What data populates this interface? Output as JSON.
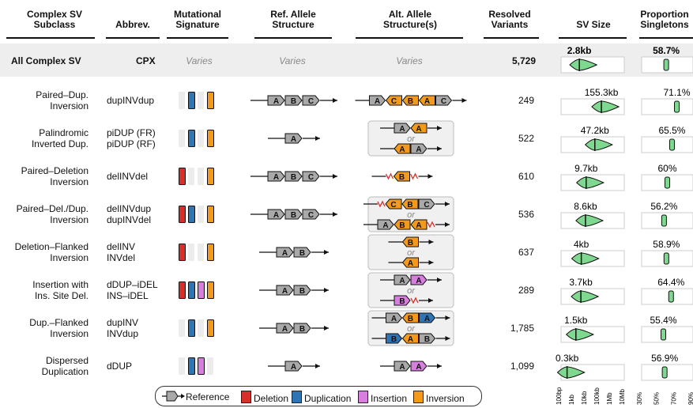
{
  "headers": {
    "subclass": "Complex SV\nSubclass",
    "abbrev": "Abbrev.",
    "signature": "Mutational\nSignature",
    "ref": "Ref. Allele\nStructure",
    "alt": "Alt. Allele\nStructure(s)",
    "resolved": "Resolved\nVariants",
    "size": "SV Size",
    "prop": "Proportion\nSingletons"
  },
  "all_row": {
    "name": "All Complex SV",
    "abbrev": "CPX",
    "varies": "Varies",
    "count": "5,729",
    "size_label": "2.8kb",
    "prop_label": "58.7%"
  },
  "or_word": "or",
  "colors": {
    "deletion": "#d7302b",
    "duplication": "#2f74b5",
    "insertion": "#d77ede",
    "inversion": "#f39a1e",
    "reference": "#a9a9a9",
    "violin": "#7fd88f",
    "row_bg": "#eeeeee",
    "empty_sig": "#ececec"
  },
  "legend": {
    "reference": "Reference",
    "deletion": "Deletion",
    "duplication": "Duplication",
    "insertion": "Insertion",
    "inversion": "Inversion"
  },
  "rows": [
    {
      "name": "Paired–Dup.\nInversion",
      "abbrev": "dupINVdup",
      "count": "249",
      "size_label": "155.3kb",
      "prop_label": "71.1%",
      "sig": [
        "",
        "dup",
        "",
        "inv"
      ],
      "ref": [
        "A",
        "B",
        "C"
      ],
      "alt": [
        "A",
        "C",
        "B",
        "A",
        "C"
      ]
    },
    {
      "name": "Palindromic\nInverted Dup.",
      "abbrev": "piDUP (FR)\npiDUP (RF)",
      "count": "522",
      "size_label": "47.2kb",
      "prop_label": "65.5%",
      "sig": [
        "",
        "dup",
        "",
        "inv"
      ],
      "ref": [
        "A"
      ],
      "alt": [
        "A",
        "A"
      ]
    },
    {
      "name": "Paired–Deletion\nInversion",
      "abbrev": "delINVdel",
      "count": "610",
      "size_label": "9.7kb",
      "prop_label": "60%",
      "sig": [
        "del",
        "",
        "",
        "inv"
      ],
      "ref": [
        "A",
        "B",
        "C"
      ],
      "alt": [
        "B"
      ]
    },
    {
      "name": "Paired–Del./Dup.\nInversion",
      "abbrev": "delINVdup\ndupINVdel",
      "count": "536",
      "size_label": "8.6kb",
      "prop_label": "56.2%",
      "sig": [
        "del",
        "dup",
        "",
        "inv"
      ],
      "ref": [
        "A",
        "B",
        "C"
      ],
      "alt": [
        "A",
        "B",
        "C"
      ]
    },
    {
      "name": "Deletion–Flanked\nInversion",
      "abbrev": "delINV\nINVdel",
      "count": "637",
      "size_label": "4kb",
      "prop_label": "58.9%",
      "sig": [
        "del",
        "",
        "",
        "inv"
      ],
      "ref": [
        "A",
        "B"
      ],
      "alt": [
        "B",
        "A"
      ]
    },
    {
      "name": "Insertion with\nIns. Site Del.",
      "abbrev": "dDUP–iDEL\nINS–iDEL",
      "count": "289",
      "size_label": "3.7kb",
      "prop_label": "64.4%",
      "sig": [
        "del",
        "dup",
        "ins",
        "inv"
      ],
      "ref": [
        "A",
        "B"
      ],
      "alt": [
        "A",
        "A",
        "B"
      ]
    },
    {
      "name": "Dup.–Flanked\nInversion",
      "abbrev": "dupINV\nINVdup",
      "count": "1,785",
      "size_label": "1.5kb",
      "prop_label": "55.4%",
      "sig": [
        "",
        "dup",
        "",
        "inv"
      ],
      "ref": [
        "A",
        "B"
      ],
      "alt": [
        "A",
        "B",
        "A",
        "B"
      ]
    },
    {
      "name": "Dispersed\nDuplication",
      "abbrev": "dDUP",
      "count": "1,099",
      "size_label": "0.3kb",
      "prop_label": "56.9%",
      "sig": [
        "",
        "dup",
        "ins",
        ""
      ],
      "ref": [
        "A"
      ],
      "alt": [
        "A",
        "A"
      ]
    }
  ],
  "chart_data": [
    {
      "type": "violin",
      "title": "SV Size",
      "scale": "log10",
      "tick_labels": [
        "100bp",
        "1kb",
        "10kb",
        "100kb",
        "1Mb",
        "10Mb"
      ],
      "categories": [
        "All Complex SV",
        "dupINVdup",
        "piDUP",
        "delINVdel",
        "delINVdup/dupINVdel",
        "delINV/INVdel",
        "dDUP-iDEL/INS-iDEL",
        "dupINV/INVdup",
        "dDUP"
      ],
      "medians_kb": [
        2.8,
        155.3,
        47.2,
        9.7,
        8.6,
        4,
        3.7,
        1.5,
        0.3
      ]
    },
    {
      "type": "violin",
      "title": "Proportion Singletons",
      "tick_labels": [
        "30%",
        "50%",
        "70%",
        "90%"
      ],
      "categories": [
        "All Complex SV",
        "dupINVdup",
        "piDUP",
        "delINVdel",
        "delINVdup/dupINVdel",
        "delINV/INVdel",
        "dDUP-iDEL/INS-iDEL",
        "dupINV/INVdup",
        "dDUP"
      ],
      "medians_pct": [
        58.7,
        71.1,
        65.5,
        60,
        56.2,
        58.9,
        64.4,
        55.4,
        56.9
      ]
    }
  ]
}
